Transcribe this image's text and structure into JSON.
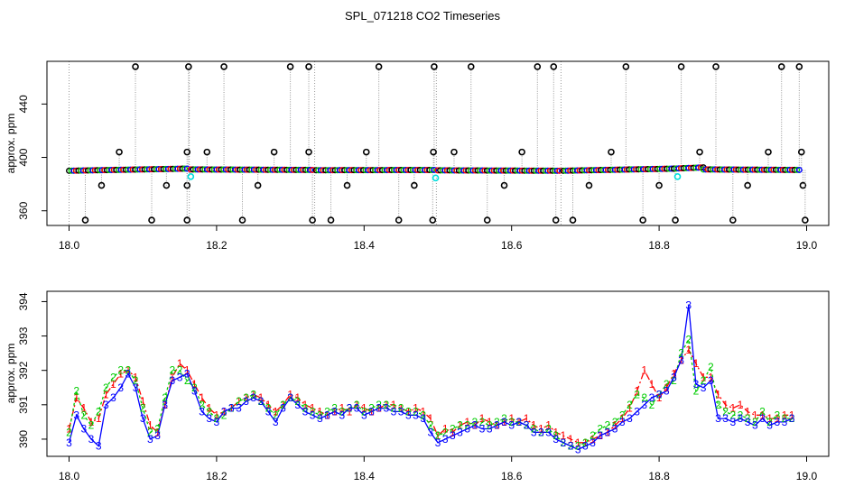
{
  "title": "SPL_071218  CO2 Timeseries",
  "colors": {
    "series1": "#ff0000",
    "series2": "#00cc00",
    "series3": "#0000ff",
    "raw": "#000000",
    "flagged": "#00dddd",
    "gridline": "#999999"
  },
  "chart_data": [
    {
      "type": "scatter",
      "ylabel": "approx. ppm",
      "xlim": [
        17.97,
        19.03
      ],
      "ylim": [
        349,
        472
      ],
      "x_ticks": [
        "18.0",
        "18.2",
        "18.4",
        "18.6",
        "18.8",
        "19.0"
      ],
      "y_ticks": [
        "360",
        "400",
        "440"
      ],
      "baseline_segments": [
        {
          "x": [
            18.0,
            18.16
          ],
          "y": [
            390.0,
            391.6
          ]
        },
        {
          "x": [
            18.165,
            18.33
          ],
          "y": [
            391.0,
            390.6
          ]
        },
        {
          "x": [
            18.335,
            18.495
          ],
          "y": [
            390.4,
            390.6
          ]
        },
        {
          "x": [
            18.5,
            18.665
          ],
          "y": [
            390.3,
            390.0
          ]
        },
        {
          "x": [
            18.67,
            18.82
          ],
          "y": [
            390.0,
            391.6
          ]
        },
        {
          "x": [
            18.82,
            18.86
          ],
          "y": [
            391.6,
            392.5
          ]
        },
        {
          "x": [
            18.86,
            18.99
          ],
          "y": [
            391.0,
            390.6
          ]
        }
      ],
      "spikes_high": [
        18.09,
        18.162,
        18.21,
        18.3,
        18.325,
        18.42,
        18.495,
        18.545,
        18.635,
        18.657,
        18.755,
        18.83,
        18.877,
        18.966,
        18.99
      ],
      "spikes_mid": [
        18.068,
        18.16,
        18.187,
        18.278,
        18.325,
        18.403,
        18.494,
        18.522,
        18.614,
        18.735,
        18.855,
        18.948,
        18.993
      ],
      "spikes_low": [
        18.044,
        18.132,
        18.16,
        18.256,
        18.377,
        18.468,
        18.59,
        18.705,
        18.8,
        18.92,
        18.995
      ],
      "spikes_bottom": [
        18.022,
        18.112,
        18.16,
        18.235,
        18.33,
        18.355,
        18.447,
        18.493,
        18.567,
        18.66,
        18.683,
        18.778,
        18.822,
        18.9,
        18.998
      ],
      "spike_levels": {
        "high": 468,
        "mid": 404,
        "low": 379,
        "bottom": 353
      },
      "flagged_points": [
        18.165,
        18.497,
        18.825
      ]
    },
    {
      "type": "line",
      "ylabel": "approx. ppm",
      "xlim": [
        17.97,
        19.03
      ],
      "ylim": [
        389.5,
        394.3
      ],
      "x_ticks": [
        "18.0",
        "18.2",
        "18.4",
        "18.6",
        "18.8",
        "19.0"
      ],
      "y_ticks": [
        "390",
        "391",
        "392",
        "393",
        "394"
      ],
      "x": [
        18.0,
        18.01,
        18.02,
        18.03,
        18.04,
        18.05,
        18.06,
        18.07,
        18.08,
        18.09,
        18.1,
        18.11,
        18.12,
        18.13,
        18.14,
        18.15,
        18.16,
        18.17,
        18.18,
        18.19,
        18.2,
        18.21,
        18.22,
        18.23,
        18.24,
        18.25,
        18.26,
        18.27,
        18.28,
        18.29,
        18.3,
        18.31,
        18.32,
        18.33,
        18.34,
        18.35,
        18.36,
        18.37,
        18.38,
        18.39,
        18.4,
        18.41,
        18.42,
        18.43,
        18.44,
        18.45,
        18.46,
        18.47,
        18.48,
        18.49,
        18.5,
        18.51,
        18.52,
        18.53,
        18.54,
        18.55,
        18.56,
        18.57,
        18.58,
        18.59,
        18.6,
        18.61,
        18.62,
        18.63,
        18.64,
        18.65,
        18.66,
        18.67,
        18.68,
        18.69,
        18.7,
        18.71,
        18.72,
        18.73,
        18.74,
        18.75,
        18.76,
        18.77,
        18.78,
        18.79,
        18.8,
        18.81,
        18.82,
        18.83,
        18.84,
        18.85,
        18.86,
        18.87,
        18.88,
        18.89,
        18.9,
        18.91,
        18.92,
        18.93,
        18.94,
        18.95,
        18.96,
        18.97,
        18.98
      ],
      "series": [
        {
          "name": "1",
          "values": [
            390.3,
            391.2,
            390.9,
            390.5,
            390.6,
            391.3,
            391.6,
            391.9,
            392.0,
            391.8,
            391.1,
            390.4,
            390.2,
            391.0,
            391.8,
            392.2,
            392.0,
            391.6,
            391.2,
            390.9,
            390.7,
            390.8,
            390.9,
            391.1,
            391.2,
            391.3,
            391.2,
            391.0,
            390.8,
            391.0,
            391.3,
            391.2,
            391.0,
            390.9,
            390.8,
            390.7,
            390.8,
            390.9,
            390.8,
            391.0,
            390.9,
            390.8,
            390.9,
            391.0,
            391.0,
            390.9,
            390.8,
            390.9,
            390.8,
            390.6,
            390.1,
            390.3,
            390.2,
            390.4,
            390.5,
            390.4,
            390.6,
            390.5,
            390.4,
            390.5,
            390.6,
            390.5,
            390.6,
            390.4,
            390.3,
            390.4,
            390.2,
            390.1,
            390.0,
            389.9,
            389.9,
            390.0,
            390.1,
            390.2,
            390.4,
            390.6,
            390.9,
            391.4,
            392.0,
            391.6,
            391.2,
            391.5,
            391.9,
            392.3,
            392.6,
            392.2,
            391.8,
            391.8,
            391.3,
            391.0,
            390.9,
            391.0,
            390.8,
            390.7,
            390.7,
            390.6,
            390.6,
            390.7,
            390.7
          ]
        },
        {
          "name": "2",
          "values": [
            390.2,
            391.4,
            390.7,
            390.4,
            390.8,
            391.5,
            391.8,
            392.0,
            392.0,
            391.7,
            390.9,
            390.2,
            390.3,
            391.2,
            392.0,
            392.0,
            391.7,
            391.5,
            391.0,
            390.8,
            390.6,
            390.7,
            390.9,
            391.1,
            391.2,
            391.3,
            391.1,
            390.9,
            390.7,
            391.0,
            391.2,
            391.1,
            390.9,
            390.8,
            390.7,
            390.8,
            390.9,
            390.8,
            390.9,
            391.0,
            390.8,
            390.9,
            391.0,
            391.0,
            390.9,
            390.9,
            390.8,
            390.8,
            390.7,
            390.4,
            390.1,
            390.2,
            390.3,
            390.4,
            390.4,
            390.5,
            390.5,
            390.4,
            390.5,
            390.6,
            390.5,
            390.5,
            390.4,
            390.3,
            390.2,
            390.3,
            390.1,
            389.9,
            389.8,
            389.8,
            389.9,
            390.1,
            390.3,
            390.4,
            390.5,
            390.7,
            391.0,
            391.3,
            391.2,
            391.0,
            391.3,
            391.6,
            391.7,
            392.5,
            392.9,
            391.4,
            391.7,
            392.1,
            391.0,
            390.8,
            390.7,
            390.7,
            390.6,
            390.5,
            390.8,
            390.5,
            390.7,
            390.6,
            390.6
          ]
        },
        {
          "name": "3",
          "values": [
            389.9,
            390.7,
            390.3,
            390.0,
            389.8,
            391.0,
            391.2,
            391.5,
            391.9,
            391.5,
            390.6,
            390.0,
            390.1,
            391.0,
            391.7,
            391.8,
            391.9,
            391.4,
            390.8,
            390.6,
            390.5,
            390.8,
            390.9,
            390.9,
            391.1,
            391.2,
            391.1,
            390.8,
            390.5,
            390.9,
            391.2,
            391.0,
            390.8,
            390.7,
            390.6,
            390.7,
            390.8,
            390.7,
            390.9,
            390.9,
            390.7,
            390.8,
            390.9,
            390.9,
            390.8,
            390.8,
            390.7,
            390.7,
            390.6,
            390.2,
            389.9,
            390.0,
            390.1,
            390.2,
            390.3,
            390.4,
            390.3,
            390.3,
            390.4,
            390.5,
            390.4,
            390.5,
            390.4,
            390.2,
            390.2,
            390.2,
            390.0,
            389.9,
            389.8,
            389.7,
            389.8,
            389.9,
            390.1,
            390.2,
            390.3,
            390.5,
            390.6,
            390.8,
            391.0,
            391.2,
            391.3,
            391.4,
            391.8,
            392.3,
            393.9,
            391.6,
            391.5,
            391.7,
            390.6,
            390.6,
            390.5,
            390.6,
            390.5,
            390.4,
            390.6,
            390.4,
            390.5,
            390.5,
            390.6
          ]
        }
      ]
    }
  ]
}
